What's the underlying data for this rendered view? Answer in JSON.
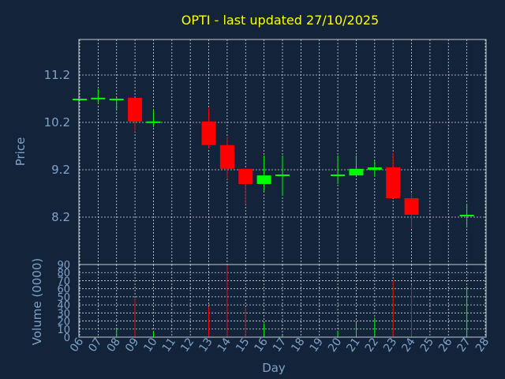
{
  "chart_data": [
    {
      "type": "candlestick",
      "title": "OPTI - last updated 27/10/2025",
      "ylabel": "Price",
      "ylim": [
        7.2,
        11.95
      ],
      "yticks": [
        8.2,
        9.2,
        10.2,
        11.2
      ],
      "grid": true,
      "colors": {
        "up": "#00ff00",
        "down": "#ff0000"
      },
      "candles": [
        {
          "day": "06",
          "open": 10.7,
          "high": 10.7,
          "low": 10.7,
          "close": 10.7
        },
        {
          "day": "07",
          "open": 10.7,
          "high": 10.9,
          "low": 10.62,
          "close": 10.72
        },
        {
          "day": "08",
          "open": 10.7,
          "high": 10.72,
          "low": 10.45,
          "close": 10.7
        },
        {
          "day": "09",
          "open": 10.72,
          "high": 10.72,
          "low": 10.0,
          "close": 10.22
        },
        {
          "day": "10",
          "open": 10.2,
          "high": 10.47,
          "low": 10.1,
          "close": 10.22
        },
        {
          "day": "13",
          "open": 10.22,
          "high": 10.5,
          "low": 9.65,
          "close": 9.72
        },
        {
          "day": "14",
          "open": 9.72,
          "high": 9.9,
          "low": 9.0,
          "close": 9.22
        },
        {
          "day": "15",
          "open": 9.22,
          "high": 9.22,
          "low": 8.47,
          "close": 8.9
        },
        {
          "day": "16",
          "open": 8.9,
          "high": 9.5,
          "low": 8.75,
          "close": 9.08
        },
        {
          "day": "17",
          "open": 9.1,
          "high": 9.5,
          "low": 8.65,
          "close": 9.1
        },
        {
          "day": "20",
          "open": 9.08,
          "high": 9.5,
          "low": 8.9,
          "close": 9.1
        },
        {
          "day": "21",
          "open": 9.08,
          "high": 9.5,
          "low": 9.08,
          "close": 9.22
        },
        {
          "day": "22",
          "open": 9.2,
          "high": 9.38,
          "low": 9.05,
          "close": 9.25
        },
        {
          "day": "23",
          "open": 9.25,
          "high": 9.55,
          "low": 8.62,
          "close": 8.6
        },
        {
          "day": "24",
          "open": 8.6,
          "high": 8.7,
          "low": 7.97,
          "close": 8.25
        },
        {
          "day": "27",
          "open": 8.22,
          "high": 8.48,
          "low": 7.98,
          "close": 8.25
        }
      ]
    },
    {
      "type": "bar",
      "ylabel": "Volume (0000)",
      "xlabel": "Day",
      "ylim": [
        0,
        90
      ],
      "yticks": [
        0,
        10,
        20,
        30,
        40,
        50,
        60,
        70,
        80,
        90
      ],
      "categories": [
        "06",
        "07",
        "08",
        "09",
        "10",
        "11",
        "12",
        "13",
        "14",
        "15",
        "16",
        "17",
        "18",
        "19",
        "20",
        "21",
        "22",
        "23",
        "24",
        "25",
        "26",
        "27",
        "28"
      ],
      "values": [
        0,
        1,
        12,
        48,
        8,
        0,
        0,
        38,
        90,
        36,
        17,
        2,
        0,
        0,
        8,
        18,
        24,
        71,
        65,
        0,
        0,
        63,
        0
      ],
      "bar_colors": [
        "#00ff00",
        "#00ff00",
        "#00ff00",
        "#ff0000",
        "#00ff00",
        "#00ff00",
        "#00ff00",
        "#ff0000",
        "#ff0000",
        "#ff0000",
        "#00ff00",
        "#00ff00",
        "#00ff00",
        "#00ff00",
        "#00ff00",
        "#00ff00",
        "#00ff00",
        "#ff0000",
        "#ff0000",
        "#00ff00",
        "#00ff00",
        "#00ff00",
        "#00ff00"
      ]
    }
  ]
}
